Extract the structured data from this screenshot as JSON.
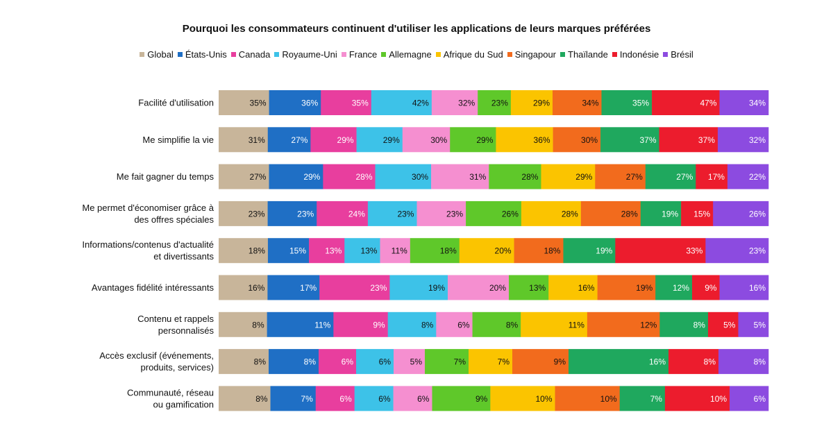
{
  "chart_data": {
    "type": "bar",
    "orientation": "horizontal",
    "stacked": true,
    "title": "Pourquoi les consommateurs continuent d'utiliser les applications de leurs marques préférées",
    "legend_position": "top",
    "categories": [
      "Facilité d'utilisation",
      "Me simplifie la vie",
      "Me fait gagner du temps",
      "Me permet d'économiser grâce à\ndes offres spéciales",
      "Informations/contenus d'actualité\net divertissants",
      "Avantages fidélité intéressants",
      "Contenu et rappels\npersonnalisés",
      "Accès exclusif (événements,\nproduits, services)",
      "Communauté, réseau\nou gamification"
    ],
    "series": [
      {
        "name": "Global",
        "color": "#C8B59A",
        "values": [
          35,
          31,
          27,
          23,
          18,
          16,
          8,
          8,
          8
        ]
      },
      {
        "name": "États-Unis",
        "color": "#1F6FC5",
        "values": [
          36,
          27,
          29,
          23,
          15,
          17,
          11,
          8,
          7
        ]
      },
      {
        "name": "Canada",
        "color": "#E83E9E",
        "values": [
          35,
          29,
          28,
          24,
          13,
          23,
          9,
          6,
          6
        ]
      },
      {
        "name": "Royaume-Uni",
        "color": "#3DC2E8",
        "values": [
          42,
          29,
          30,
          23,
          13,
          19,
          8,
          6,
          6
        ]
      },
      {
        "name": "France",
        "color": "#F58FD0",
        "values": [
          32,
          30,
          31,
          23,
          11,
          20,
          6,
          5,
          6
        ]
      },
      {
        "name": "Allemagne",
        "color": "#5FC82A",
        "values": [
          23,
          29,
          28,
          26,
          18,
          13,
          8,
          7,
          9
        ]
      },
      {
        "name": "Afrique du Sud",
        "color": "#FBC400",
        "values": [
          29,
          36,
          29,
          28,
          20,
          16,
          11,
          7,
          10
        ]
      },
      {
        "name": "Singapour",
        "color": "#F26B1D",
        "values": [
          34,
          30,
          27,
          28,
          18,
          19,
          12,
          9,
          10
        ]
      },
      {
        "name": "Thaïlande",
        "color": "#1FA85E",
        "values": [
          35,
          37,
          27,
          19,
          19,
          12,
          8,
          16,
          7
        ]
      },
      {
        "name": "Indonésie",
        "color": "#EC1C2D",
        "values": [
          47,
          37,
          17,
          15,
          33,
          9,
          5,
          8,
          10
        ]
      },
      {
        "name": "Brésil",
        "color": "#8C4BE0",
        "values": [
          34,
          32,
          22,
          26,
          23,
          16,
          5,
          8,
          6
        ]
      }
    ],
    "value_suffix": "%"
  }
}
